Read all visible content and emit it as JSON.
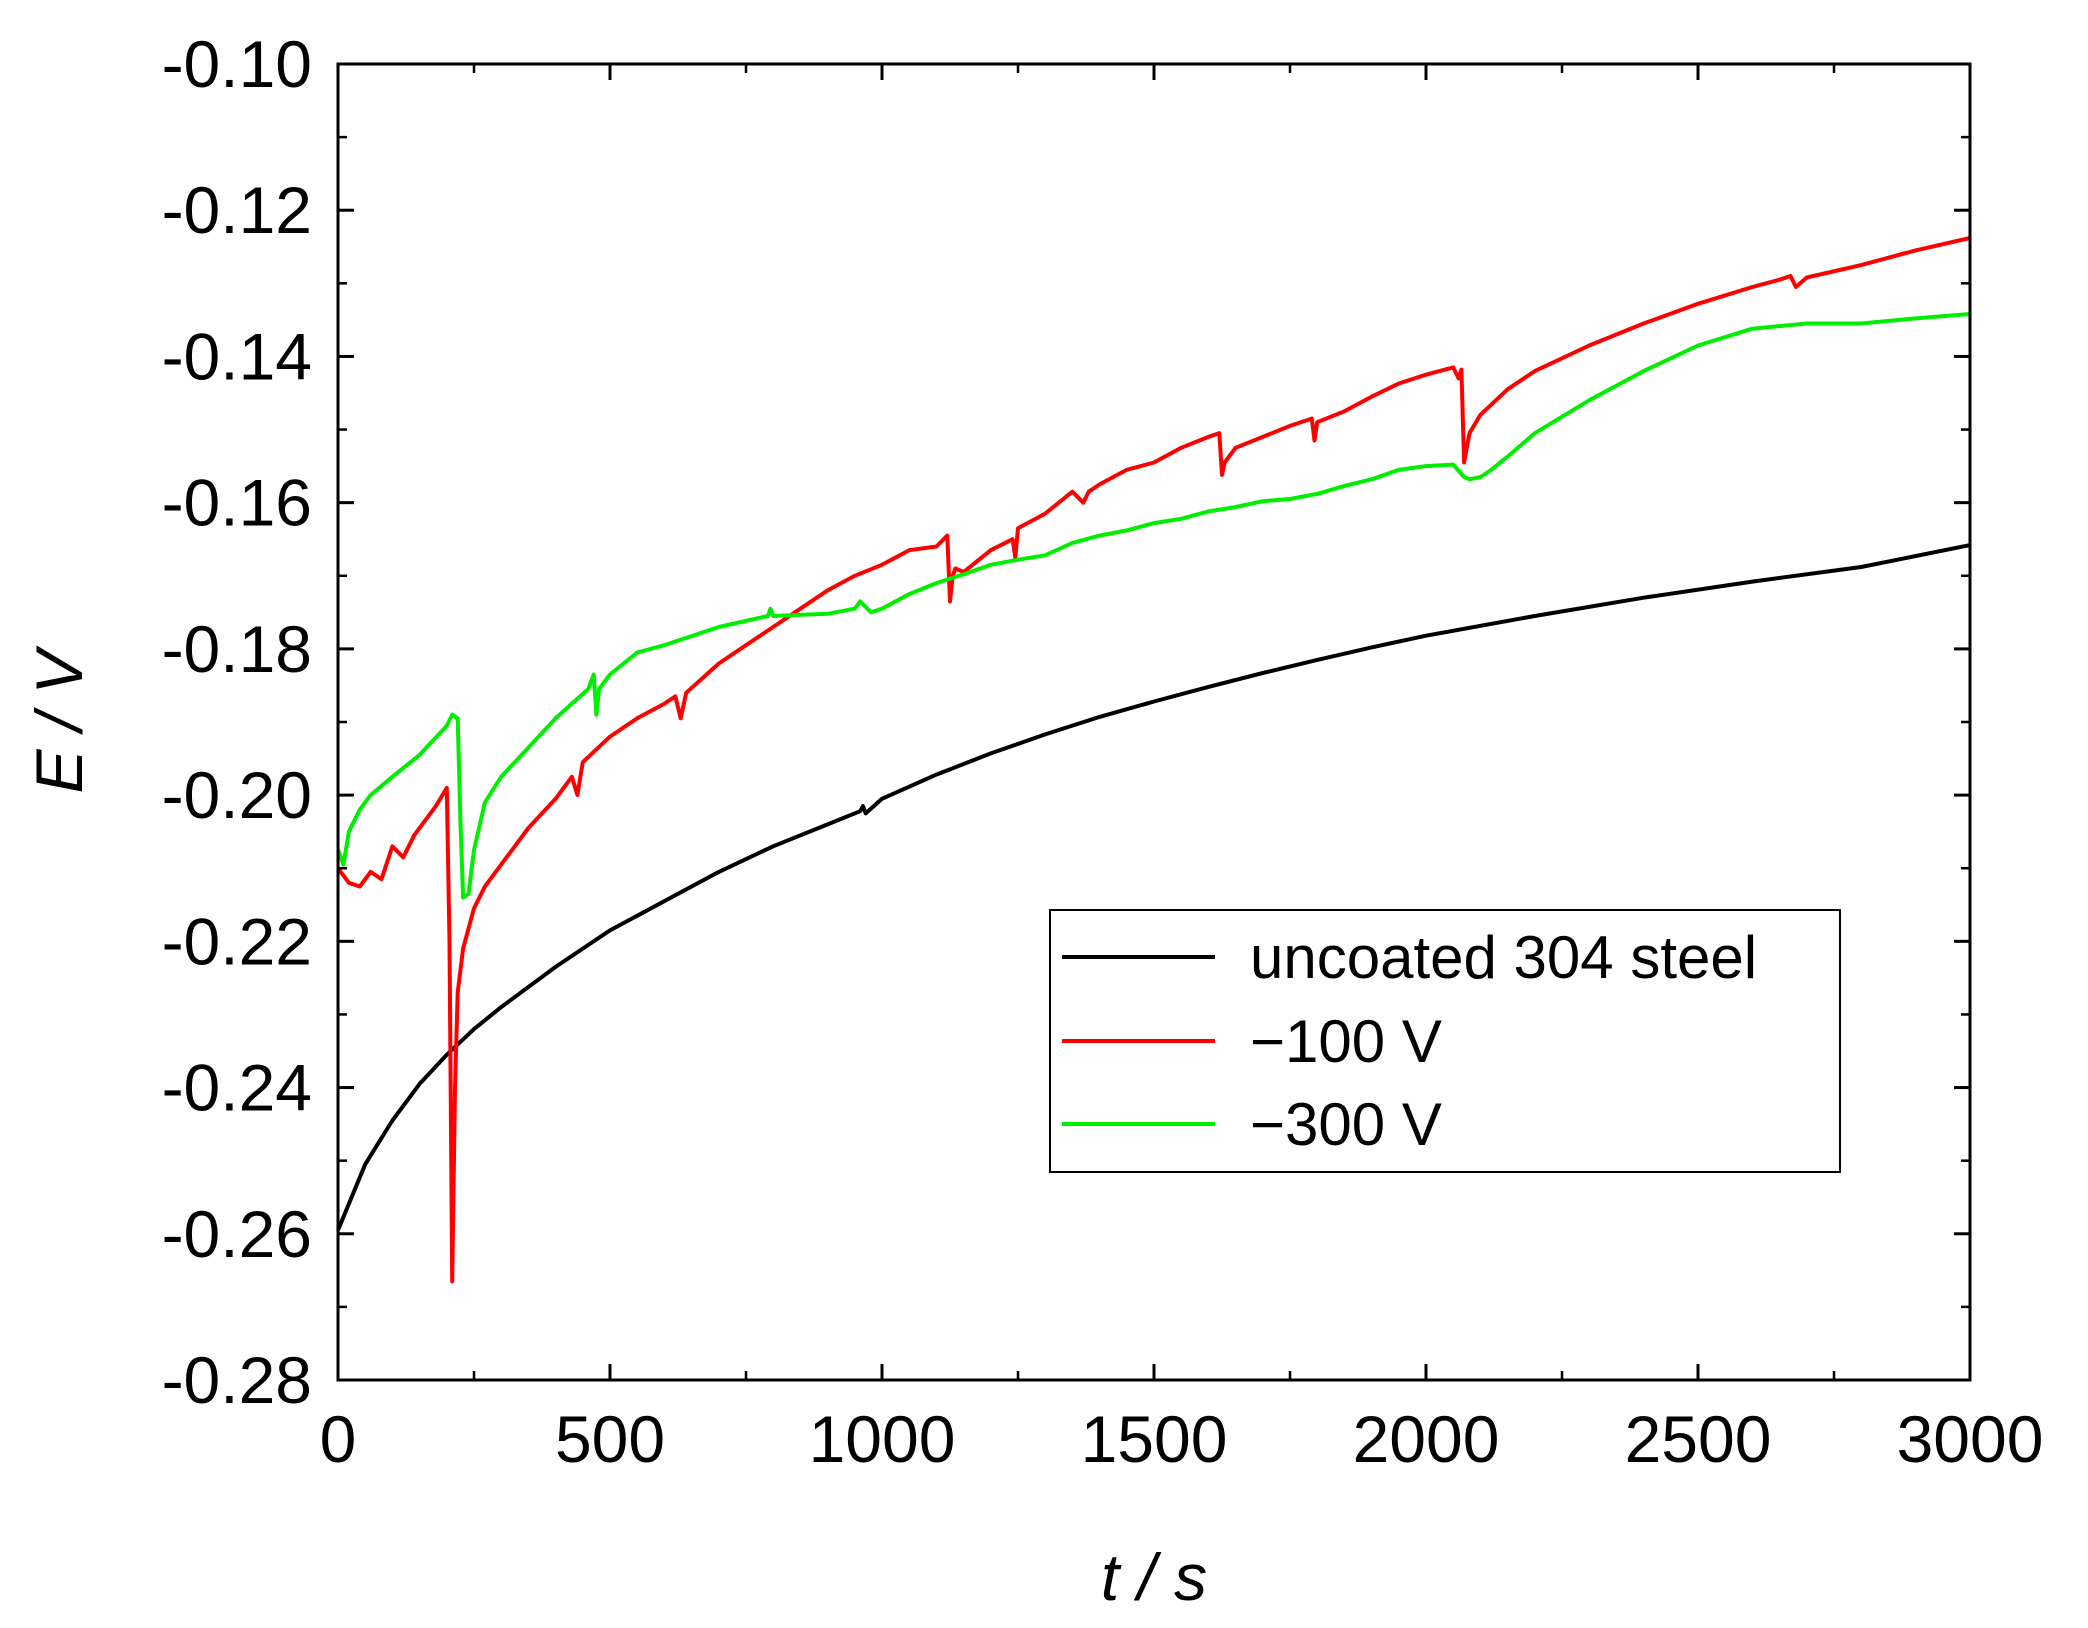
{
  "chart_data": {
    "type": "line",
    "title": "",
    "xlabel": "t / s",
    "ylabel": "E / V",
    "xlim": [
      0,
      3000
    ],
    "ylim": [
      -0.28,
      -0.1
    ],
    "xticks": [
      0,
      500,
      1000,
      1500,
      2000,
      2500,
      3000
    ],
    "xtick_labels": [
      "0",
      "500",
      "1000",
      "1500",
      "2000",
      "2500",
      "3000"
    ],
    "yticks": [
      -0.28,
      -0.26,
      -0.24,
      -0.22,
      -0.2,
      -0.18,
      -0.16,
      -0.14,
      -0.12,
      -0.1
    ],
    "ytick_labels": [
      "-0.28",
      "-0.26",
      "-0.24",
      "-0.22",
      "-0.20",
      "-0.18",
      "-0.16",
      "-0.14",
      "-0.12",
      "-0.10"
    ],
    "grid": false,
    "legend_position": "lower-right",
    "series": [
      {
        "name": "uncoated 304 steel",
        "color": "#000000",
        "x": [
          0,
          50,
          100,
          150,
          200,
          250,
          300,
          400,
          500,
          600,
          700,
          800,
          900,
          960,
          965,
          970,
          1000,
          1100,
          1200,
          1300,
          1400,
          1500,
          1600,
          1700,
          1800,
          1900,
          2000,
          2200,
          2400,
          2600,
          2800,
          3000
        ],
        "y": [
          -0.2595,
          -0.2505,
          -0.2445,
          -0.2395,
          -0.2355,
          -0.232,
          -0.229,
          -0.2235,
          -0.2185,
          -0.2145,
          -0.2105,
          -0.207,
          -0.204,
          -0.2022,
          -0.2015,
          -0.2025,
          -0.2005,
          -0.1972,
          -0.1943,
          -0.1917,
          -0.1893,
          -0.1872,
          -0.1852,
          -0.1833,
          -0.1815,
          -0.1798,
          -0.1782,
          -0.1755,
          -0.173,
          -0.1708,
          -0.1688,
          -0.1658
        ]
      },
      {
        "name": "−100 V",
        "color": "#ff0000",
        "x": [
          0,
          20,
          40,
          60,
          80,
          100,
          120,
          140,
          160,
          180,
          200,
          205,
          210,
          215,
          220,
          230,
          250,
          270,
          300,
          350,
          400,
          430,
          440,
          450,
          500,
          550,
          600,
          620,
          630,
          640,
          700,
          750,
          800,
          850,
          900,
          950,
          1000,
          1050,
          1100,
          1120,
          1125,
          1130,
          1135,
          1150,
          1200,
          1240,
          1245,
          1250,
          1300,
          1350,
          1370,
          1380,
          1400,
          1450,
          1500,
          1550,
          1600,
          1620,
          1625,
          1630,
          1640,
          1650,
          1700,
          1750,
          1790,
          1795,
          1800,
          1850,
          1900,
          1950,
          2000,
          2050,
          2060,
          2065,
          2070,
          2080,
          2100,
          2150,
          2200,
          2300,
          2400,
          2500,
          2600,
          2650,
          2670,
          2680,
          2700,
          2800,
          2900,
          3000
        ],
        "y": [
          -0.21,
          -0.212,
          -0.2125,
          -0.2105,
          -0.2115,
          -0.207,
          -0.2085,
          -0.2055,
          -0.2035,
          -0.2015,
          -0.199,
          -0.22,
          -0.2665,
          -0.24,
          -0.227,
          -0.221,
          -0.2155,
          -0.2125,
          -0.2095,
          -0.2045,
          -0.2005,
          -0.1975,
          -0.2,
          -0.1955,
          -0.192,
          -0.1895,
          -0.1875,
          -0.1865,
          -0.1895,
          -0.186,
          -0.182,
          -0.1795,
          -0.177,
          -0.1745,
          -0.172,
          -0.17,
          -0.1685,
          -0.1665,
          -0.166,
          -0.1645,
          -0.1735,
          -0.17,
          -0.169,
          -0.1695,
          -0.1665,
          -0.165,
          -0.1675,
          -0.1635,
          -0.1615,
          -0.1585,
          -0.16,
          -0.1585,
          -0.1575,
          -0.1555,
          -0.1545,
          -0.1525,
          -0.151,
          -0.1505,
          -0.1562,
          -0.1545,
          -0.1535,
          -0.1525,
          -0.151,
          -0.1495,
          -0.1485,
          -0.1515,
          -0.149,
          -0.1475,
          -0.1455,
          -0.1437,
          -0.1425,
          -0.1415,
          -0.143,
          -0.1418,
          -0.1545,
          -0.1505,
          -0.148,
          -0.1445,
          -0.142,
          -0.1385,
          -0.1355,
          -0.1328,
          -0.1305,
          -0.1295,
          -0.129,
          -0.1305,
          -0.1292,
          -0.1275,
          -0.1255,
          -0.1238
        ]
      },
      {
        "name": "−300 V",
        "color": "#00ee00",
        "x": [
          0,
          10,
          20,
          40,
          60,
          100,
          150,
          200,
          210,
          220,
          225,
          230,
          240,
          250,
          270,
          300,
          350,
          400,
          460,
          470,
          475,
          480,
          500,
          550,
          600,
          700,
          790,
          795,
          800,
          900,
          950,
          960,
          980,
          1000,
          1050,
          1100,
          1150,
          1200,
          1250,
          1300,
          1350,
          1400,
          1450,
          1500,
          1550,
          1600,
          1650,
          1700,
          1750,
          1800,
          1850,
          1900,
          1950,
          2000,
          2050,
          2070,
          2080,
          2100,
          2120,
          2150,
          2200,
          2300,
          2400,
          2500,
          2600,
          2700,
          2800,
          2900,
          3000
        ],
        "y": [
          -0.2075,
          -0.2095,
          -0.205,
          -0.202,
          -0.2,
          -0.1975,
          -0.1945,
          -0.1905,
          -0.189,
          -0.1895,
          -0.2035,
          -0.214,
          -0.2135,
          -0.2075,
          -0.201,
          -0.1975,
          -0.1935,
          -0.1895,
          -0.1855,
          -0.1835,
          -0.189,
          -0.1855,
          -0.1835,
          -0.1805,
          -0.1795,
          -0.177,
          -0.1755,
          -0.1745,
          -0.1755,
          -0.1752,
          -0.1745,
          -0.1735,
          -0.175,
          -0.1745,
          -0.1725,
          -0.171,
          -0.1698,
          -0.1685,
          -0.1678,
          -0.1672,
          -0.1655,
          -0.1645,
          -0.1638,
          -0.1628,
          -0.1622,
          -0.1612,
          -0.1606,
          -0.1598,
          -0.1595,
          -0.1588,
          -0.1577,
          -0.1568,
          -0.1555,
          -0.155,
          -0.1548,
          -0.1565,
          -0.1568,
          -0.1565,
          -0.1555,
          -0.1537,
          -0.1505,
          -0.146,
          -0.142,
          -0.1385,
          -0.1362,
          -0.1355,
          -0.1355,
          -0.1348,
          -0.1342
        ]
      }
    ]
  }
}
